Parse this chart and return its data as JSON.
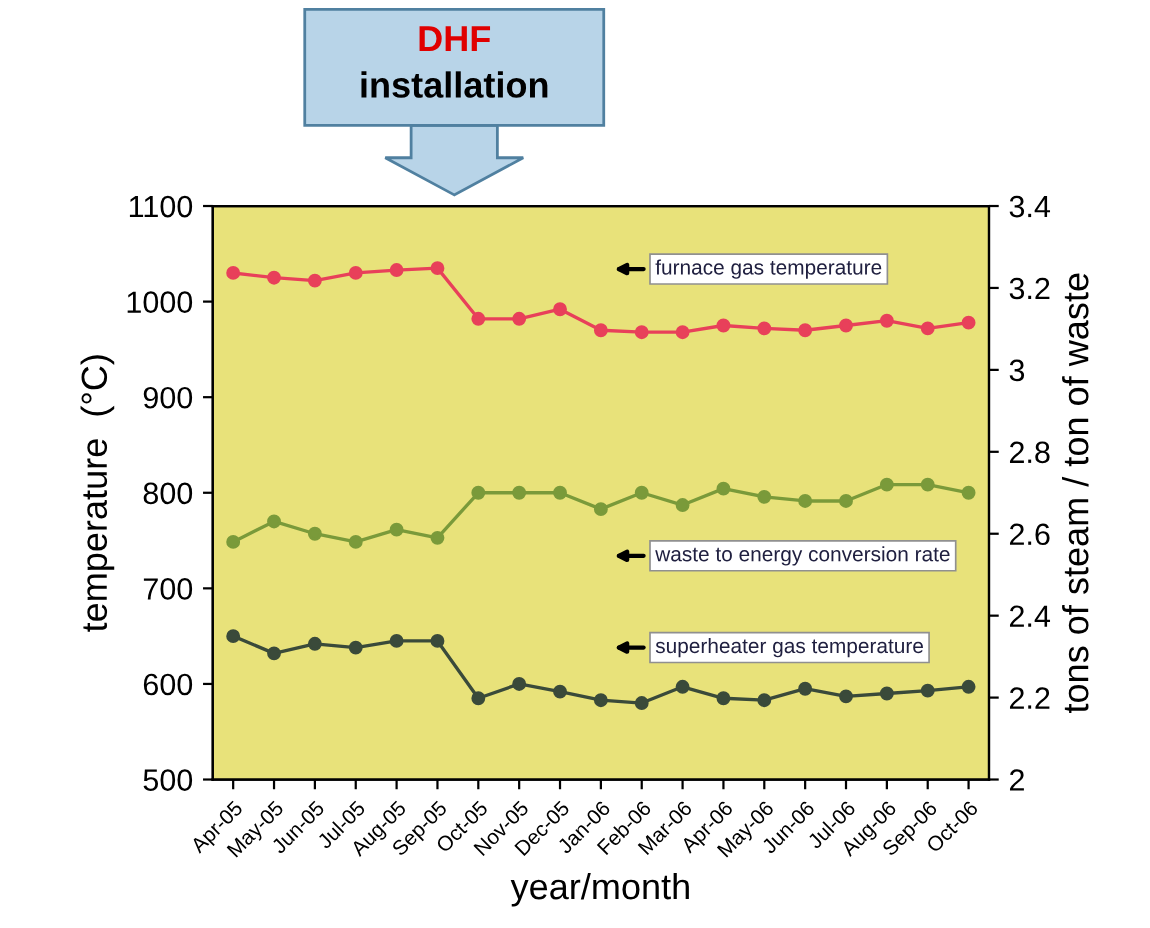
{
  "chart_data": {
    "type": "line",
    "xlabel": "year/month",
    "ylabel": "temperature  (°C)",
    "y2label": "tons of steam / ton of waste",
    "categories": [
      "Apr-05",
      "May-05",
      "Jun-05",
      "Jul-05",
      "Aug-05",
      "Sep-05",
      "Oct-05",
      "Nov-05",
      "Dec-05",
      "Jan-06",
      "Feb-06",
      "Mar-06",
      "Apr-06",
      "May-06",
      "Jun-06",
      "Jul-06",
      "Aug-06",
      "Sep-06",
      "Oct-06"
    ],
    "series": [
      {
        "name": "furnace gas temperature",
        "color": "#e8405a",
        "values": [
          1030,
          1025,
          1022,
          1030,
          1033,
          1035,
          982,
          982,
          992,
          970,
          968,
          968,
          975,
          972,
          970,
          975,
          980,
          972,
          978
        ]
      },
      {
        "name": "waste to energy conversion rate",
        "color": "#7a9a3a",
        "axis": "y2",
        "values": [
          2.58,
          2.63,
          2.6,
          2.58,
          2.61,
          2.59,
          2.7,
          2.7,
          2.7,
          2.66,
          2.7,
          2.67,
          2.71,
          2.69,
          2.68,
          2.68,
          2.72,
          2.72,
          2.7
        ]
      },
      {
        "name": "superheater gas temperature",
        "color": "#3a4a3a",
        "values": [
          650,
          632,
          642,
          638,
          645,
          645,
          585,
          600,
          592,
          583,
          580,
          597,
          585,
          583,
          595,
          587,
          590,
          593,
          597
        ]
      }
    ],
    "ylim": [
      500,
      1100
    ],
    "yticks": [
      500,
      600,
      700,
      800,
      900,
      1000,
      1100
    ],
    "y2lim": [
      2,
      3.4
    ],
    "y2ticks": [
      {
        "value": 2,
        "label": "2"
      },
      {
        "value": 2.2,
        "label": "2.2"
      },
      {
        "value": 2.4,
        "label": "2.4"
      },
      {
        "value": 2.6,
        "label": "2.6"
      },
      {
        "value": 2.8,
        "label": "2.8"
      },
      {
        "value": 3,
        "label": "3"
      },
      {
        "value": 3.2,
        "label": "3.2"
      },
      {
        "value": 3.4,
        "label": "3.4"
      }
    ],
    "marker": "circle",
    "line_style": "solid",
    "grid": false,
    "legend": false,
    "annotations": [
      "DHF installation"
    ]
  }
}
